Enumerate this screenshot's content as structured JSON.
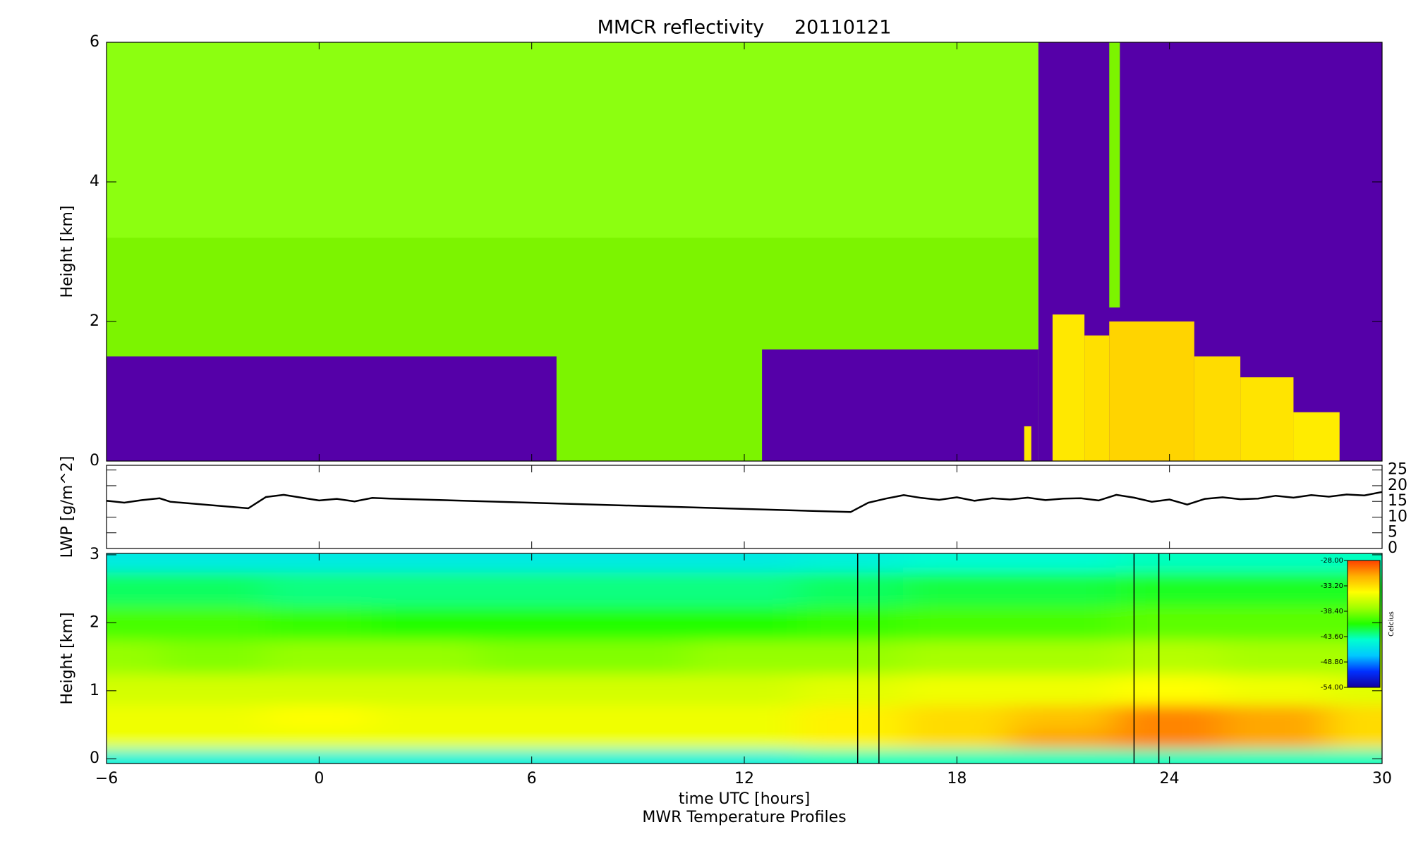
{
  "chart_data": [
    {
      "type": "heatmap",
      "title": "MMCR reflectivity     20110121",
      "ylabel": "Height [km]",
      "xlim": [
        -6,
        30
      ],
      "ylim": [
        0,
        6
      ],
      "yticks": [
        0,
        2,
        4,
        6
      ],
      "regions": [
        {
          "x0": -6,
          "x1": 20.3,
          "y0": 0,
          "y1": 6,
          "color": "#7cf400"
        },
        {
          "x0": -6,
          "x1": 20.3,
          "y0": 3.2,
          "y1": 6,
          "color": "#8cff10"
        },
        {
          "x0": -6,
          "x1": 6.7,
          "y0": 0,
          "y1": 1.5,
          "color": "#5500a8"
        },
        {
          "x0": 12.5,
          "x1": 20.3,
          "y0": 0,
          "y1": 1.6,
          "color": "#5500a8"
        },
        {
          "x0": 20.3,
          "x1": 30,
          "y0": 0,
          "y1": 6,
          "color": "#5500a8"
        },
        {
          "x0": 22.3,
          "x1": 22.6,
          "y0": 2.2,
          "y1": 6,
          "color": "#7cf400"
        },
        {
          "x0": 19.9,
          "x1": 20.1,
          "y0": 0,
          "y1": 0.5,
          "color": "#ffe800"
        },
        {
          "x0": 20.7,
          "x1": 21.6,
          "y0": 0,
          "y1": 2.1,
          "color": "#ffe800"
        },
        {
          "x0": 21.6,
          "x1": 22.3,
          "y0": 0,
          "y1": 1.8,
          "color": "#ffe000"
        },
        {
          "x0": 22.3,
          "x1": 24.7,
          "y0": 0,
          "y1": 2.0,
          "color": "#ffd400"
        },
        {
          "x0": 24.7,
          "x1": 26.0,
          "y0": 0,
          "y1": 1.5,
          "color": "#ffdc00"
        },
        {
          "x0": 26.0,
          "x1": 27.5,
          "y0": 0,
          "y1": 1.2,
          "color": "#ffe400"
        },
        {
          "x0": 27.5,
          "x1": 28.8,
          "y0": 0,
          "y1": 0.7,
          "color": "#ffec00"
        }
      ]
    },
    {
      "type": "line",
      "ylabel": "LWP [g/m^2]",
      "xlim": [
        -6,
        30
      ],
      "ylim": [
        0,
        26.5
      ],
      "yticks": [
        0,
        5,
        10,
        15,
        20,
        25
      ],
      "color": "#000000",
      "x": [
        -6,
        -5.5,
        -5,
        -4.5,
        -4.2,
        -2,
        -1.5,
        -1,
        -0.5,
        0,
        0.5,
        1,
        1.5,
        2,
        15,
        15.5,
        16,
        16.5,
        17,
        17.5,
        18,
        18.5,
        19,
        19.5,
        20,
        20.5,
        21,
        21.5,
        22,
        22.5,
        23,
        23.5,
        24,
        24.5,
        25,
        25.5,
        26,
        26.5,
        27,
        27.5,
        28,
        28.5,
        29,
        29.5,
        30
      ],
      "values": [
        15.2,
        14.6,
        15.4,
        16.0,
        14.9,
        12.8,
        16.4,
        17.1,
        16.2,
        15.3,
        15.8,
        15.0,
        16.1,
        15.9,
        11.6,
        14.6,
        15.9,
        17.0,
        16.1,
        15.5,
        16.3,
        15.2,
        16.0,
        15.6,
        16.2,
        15.4,
        15.9,
        16.0,
        15.3,
        17.1,
        16.2,
        14.9,
        15.6,
        14.0,
        15.8,
        16.3,
        15.7,
        15.9,
        16.8,
        16.2,
        17.0,
        16.5,
        17.2,
        16.9,
        18.0
      ]
    },
    {
      "type": "contour",
      "ylabel": "Height [km]",
      "xlabel": "time UTC [hours]",
      "caption": "MWR Temperature Profiles",
      "xlim": [
        -6,
        30
      ],
      "ylim": [
        -0.07,
        3.02
      ],
      "yticks": [
        0,
        1,
        2,
        3
      ],
      "xticks": [
        {
          "value": -6,
          "label": "−6"
        },
        0,
        6,
        12,
        18,
        24,
        30
      ],
      "x": [
        -6,
        -3,
        0,
        3,
        6,
        9,
        12,
        15,
        18,
        21,
        24,
        27,
        30
      ],
      "heights": [
        0,
        0.3,
        0.6,
        1,
        1.5,
        2,
        2.5,
        3
      ],
      "z": [
        [
          -45,
          -45,
          -45,
          -45,
          -45,
          -45,
          -45,
          -44,
          -44,
          -44,
          -44,
          -44,
          -44
        ],
        [
          -35,
          -35,
          -35,
          -35,
          -35,
          -35,
          -35,
          -34,
          -33,
          -31,
          -30,
          -31,
          -33
        ],
        [
          -35,
          -35,
          -34.5,
          -35,
          -35,
          -35,
          -35,
          -34,
          -33,
          -32,
          -30,
          -31,
          -33
        ],
        [
          -36,
          -36,
          -36,
          -36,
          -36,
          -36,
          -36,
          -35.5,
          -35,
          -35,
          -34.5,
          -35,
          -35.5
        ],
        [
          -38,
          -38.5,
          -38,
          -38,
          -38.5,
          -38.5,
          -38,
          -38,
          -37.5,
          -37.5,
          -37,
          -37.5,
          -37.5
        ],
        [
          -40,
          -40,
          -40.5,
          -41,
          -41,
          -41,
          -41,
          -40.5,
          -40,
          -40,
          -39.5,
          -39.5,
          -39.5
        ],
        [
          -42.5,
          -42.5,
          -43,
          -43,
          -43,
          -43,
          -43,
          -42.5,
          -42,
          -42,
          -41.5,
          -41.5,
          -41.5
        ],
        [
          -45.5,
          -45.5,
          -45.5,
          -45.5,
          -45.5,
          -45.5,
          -45.5,
          -45,
          -44.5,
          -44.5,
          -44,
          -44,
          -44
        ]
      ],
      "marked_intervals": [
        [
          15.2,
          15.8
        ],
        [
          23.0,
          23.7
        ]
      ],
      "zlim": [
        -54,
        -28
      ],
      "colorbar_label": "Celcius",
      "colormap": [
        "#1400a0",
        "#0030ff",
        "#00c8ff",
        "#00ffd0",
        "#20ff00",
        "#a0ff00",
        "#ffff00",
        "#ffb000",
        "#ff4000"
      ],
      "colorbar_ticks": [
        {
          "value": -28,
          "label": "-28.00"
        },
        {
          "value": -33.2,
          "label": "-33.20"
        },
        {
          "value": -38.4,
          "label": "-38.40"
        },
        {
          "value": -43.6,
          "label": "-43.60"
        },
        {
          "value": -48.8,
          "label": "-48.80"
        },
        {
          "value": -54,
          "label": "-54.00"
        }
      ]
    }
  ]
}
